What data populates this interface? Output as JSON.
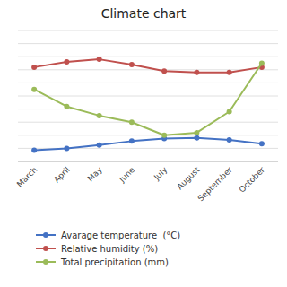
{
  "chart_data": {
    "type": "line",
    "title": "Climate chart",
    "categories": [
      "March",
      "April",
      "May",
      "June",
      "July",
      "August",
      "September",
      "October"
    ],
    "series": [
      {
        "name": "Avarage temperature  (°C)",
        "color": "#4472C4",
        "marker": "circle",
        "values": [
          8.5,
          10.0,
          12.5,
          15.5,
          17.5,
          18.0,
          16.5,
          13.5
        ]
      },
      {
        "name": "Relative humidity (%)",
        "color": "#C0504D",
        "marker": "circle",
        "values": [
          72,
          76,
          78,
          74,
          69,
          68,
          68,
          72
        ]
      },
      {
        "name": "Total precipitation (mm)",
        "color": "#9BBB59",
        "marker": "circle",
        "values": [
          55,
          42,
          35,
          30,
          20,
          22,
          38,
          75
        ]
      }
    ],
    "ylim": [
      0,
      100
    ],
    "yticks": [
      0,
      10,
      20,
      30,
      40,
      50,
      60,
      70,
      80,
      90,
      100
    ],
    "grid": true,
    "tick_labels": "x",
    "legend": "bottom"
  }
}
